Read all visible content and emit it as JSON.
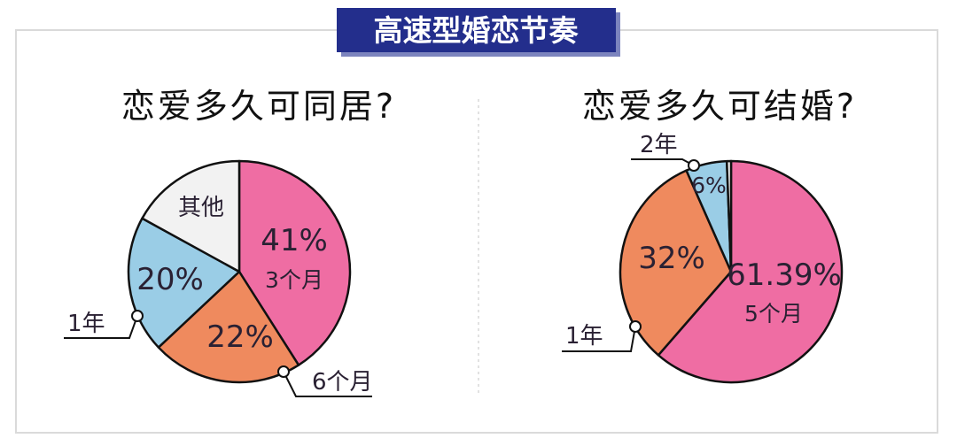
{
  "header": {
    "title": "高速型婚恋节奏"
  },
  "colors": {
    "pink": "#EF6DA3",
    "orange": "#EF8A5E",
    "blue": "#9ACDE6",
    "gray": "#F2F2F2",
    "banner_bg": "#232E8C",
    "banner_text": "#FFFFFF",
    "frame": "#DADADA"
  },
  "chart_data": [
    {
      "type": "pie",
      "title": "恋爱多久可同居?",
      "slices": [
        {
          "label": "3个月",
          "value": 41,
          "value_label": "41%",
          "color": "#EF6DA3"
        },
        {
          "label": "6个月",
          "value": 22,
          "value_label": "22%",
          "color": "#EF8A5E"
        },
        {
          "label": "1年",
          "value": 20,
          "value_label": "20%",
          "color": "#9ACDE6"
        },
        {
          "label": "其他",
          "value": 17,
          "value_label": "",
          "color": "#F2F2F2"
        }
      ]
    },
    {
      "type": "pie",
      "title": "恋爱多久可结婚?",
      "slices": [
        {
          "label": "5个月",
          "value": 61.39,
          "value_label": "61.39%",
          "color": "#EF6DA3"
        },
        {
          "label": "1年",
          "value": 32,
          "value_label": "32%",
          "color": "#EF8A5E"
        },
        {
          "label": "2年",
          "value": 6,
          "value_label": "6%",
          "color": "#9ACDE6"
        },
        {
          "label": "",
          "value": 0.61,
          "value_label": "",
          "color": "#F2F2F2"
        }
      ]
    }
  ]
}
